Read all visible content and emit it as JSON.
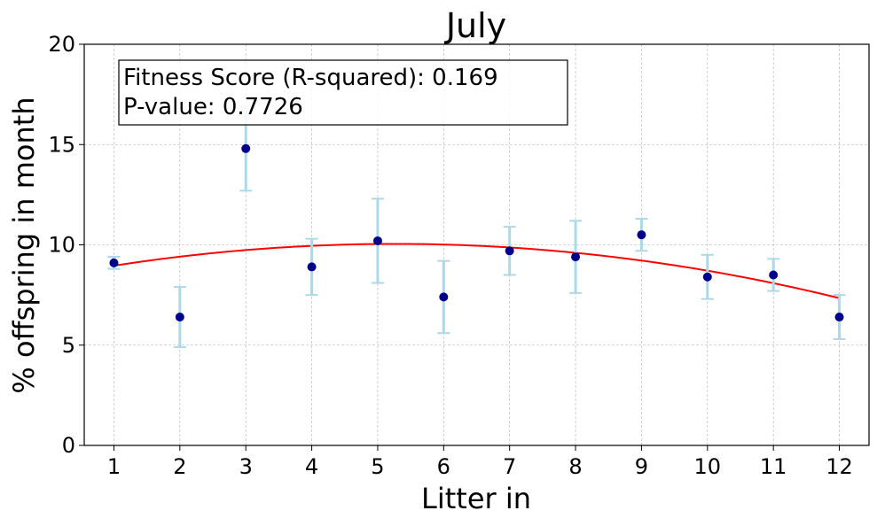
{
  "chart_data": {
    "type": "scatter",
    "title": "July",
    "xlabel": "Litter in",
    "ylabel": "% offspring in month",
    "xlim": [
      0.55,
      12.45
    ],
    "ylim": [
      0,
      20
    ],
    "xticks": [
      1,
      2,
      3,
      4,
      5,
      6,
      7,
      8,
      9,
      10,
      11,
      12
    ],
    "yticks": [
      0,
      5,
      10,
      15,
      20
    ],
    "grid": true,
    "points": {
      "x": [
        1,
        2,
        3,
        4,
        5,
        6,
        7,
        8,
        9,
        10,
        11,
        12
      ],
      "y": [
        9.1,
        6.4,
        14.8,
        8.9,
        10.2,
        7.4,
        9.7,
        9.4,
        10.5,
        8.4,
        8.5,
        6.4
      ],
      "err": [
        0.3,
        1.5,
        2.1,
        1.4,
        2.1,
        1.8,
        1.2,
        1.8,
        0.8,
        1.1,
        0.8,
        1.1
      ]
    },
    "fit": {
      "type": "quadratic",
      "coefficients": [
        -0.0596,
        0.6279,
        8.393
      ]
    },
    "annotation": {
      "line1": "Fitness Score (R-squared): 0.169",
      "line2": "P-value: 0.7726"
    },
    "colors": {
      "points": "#00008b",
      "errorbars": "#add8e6",
      "fit": "#ff0000",
      "grid": "#b0b0b0"
    }
  }
}
